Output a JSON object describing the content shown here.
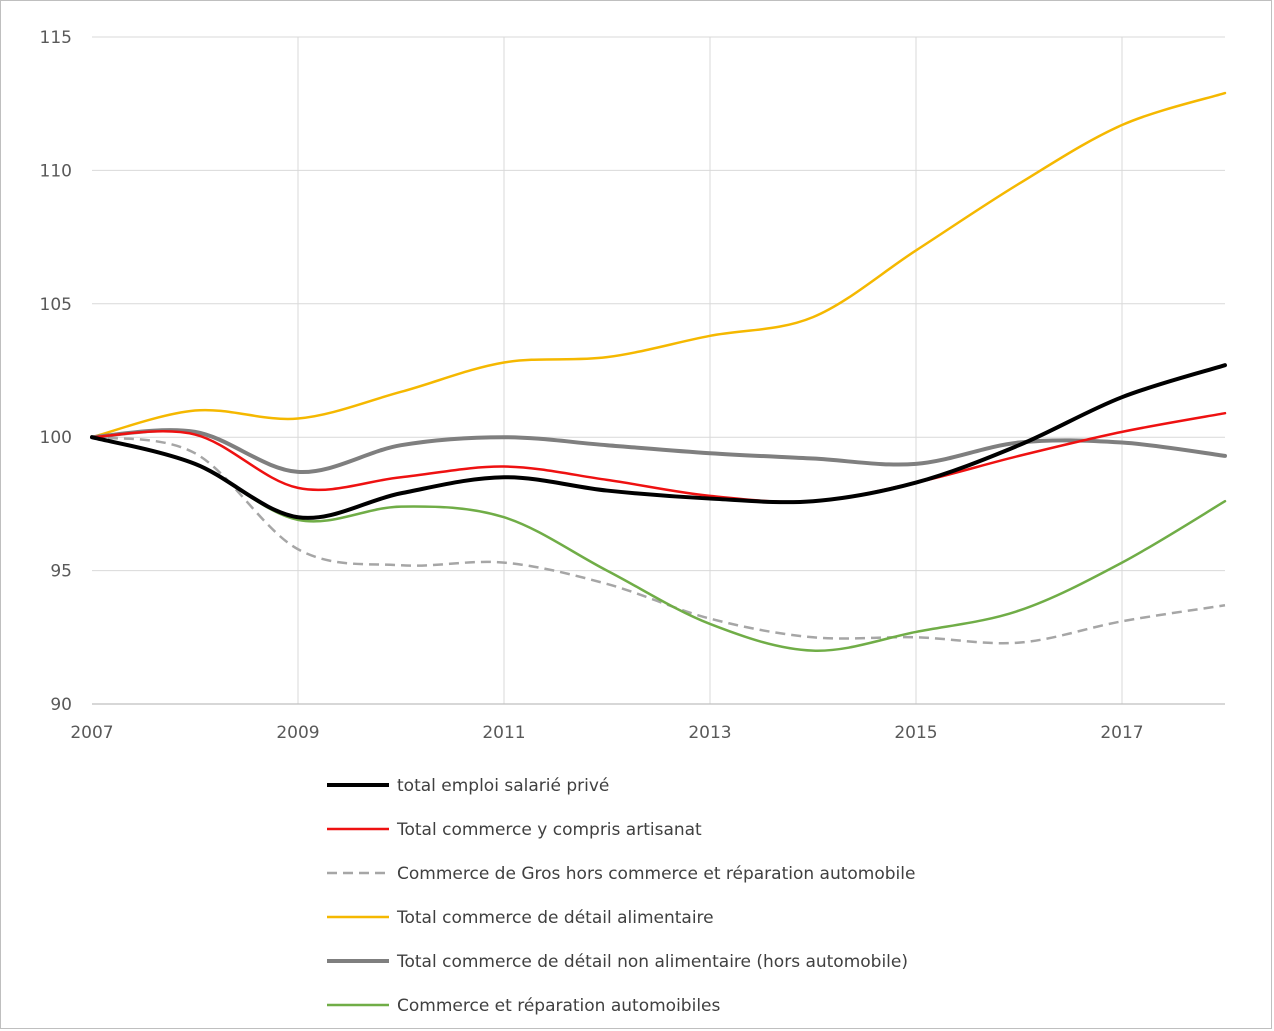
{
  "chart_data": {
    "type": "line",
    "title": "",
    "xlabel": "",
    "ylabel": "",
    "xlim": [
      2007,
      2018
    ],
    "ylim": [
      90,
      115
    ],
    "x_ticks": [
      2007,
      2009,
      2011,
      2013,
      2015,
      2017
    ],
    "x_tick_labels": [
      "2007",
      "2009",
      "2011",
      "2013",
      "2015",
      "2017"
    ],
    "y_ticks": [
      90,
      95,
      100,
      105,
      110,
      115
    ],
    "y_tick_labels": [
      "90",
      "95",
      "100",
      "105",
      "110",
      "115"
    ],
    "grid": true,
    "legend_position": "bottom",
    "x": [
      2007,
      2008,
      2009,
      2010,
      2011,
      2012,
      2013,
      2014,
      2015,
      2016,
      2017,
      2018
    ],
    "series": [
      {
        "name": "total emploi salarié privé",
        "color": "#000000",
        "dash": "solid",
        "width": 4,
        "values": [
          100,
          99.0,
          97.0,
          97.9,
          98.5,
          98.0,
          97.7,
          97.6,
          98.3,
          99.7,
          101.5,
          102.7
        ]
      },
      {
        "name": "Total commerce y compris artisanat",
        "color": "#ee1111",
        "dash": "solid",
        "width": 2.5,
        "values": [
          100,
          100.1,
          98.1,
          98.5,
          98.9,
          98.4,
          97.8,
          97.6,
          98.3,
          99.3,
          100.2,
          100.9
        ]
      },
      {
        "name": "Commerce de Gros  hors commerce et réparation automobile",
        "color": "#a6a6a6",
        "dash": "dashed",
        "width": 2.5,
        "values": [
          100,
          99.4,
          95.8,
          95.2,
          95.3,
          94.5,
          93.2,
          92.5,
          92.5,
          92.3,
          93.1,
          93.7
        ]
      },
      {
        "name": "Total commerce de détail alimentaire",
        "color": "#f5b800",
        "dash": "solid",
        "width": 2.5,
        "values": [
          100,
          101.0,
          100.7,
          101.7,
          102.8,
          103.0,
          103.8,
          104.5,
          107.0,
          109.5,
          111.7,
          112.9
        ]
      },
      {
        "name": "Total commerce de détail non alimentaire (hors automobile)",
        "color": "#7f7f7f",
        "dash": "solid",
        "width": 4,
        "values": [
          100,
          100.2,
          98.7,
          99.7,
          100.0,
          99.7,
          99.4,
          99.2,
          99.0,
          99.8,
          99.8,
          99.3
        ]
      },
      {
        "name": "Commerce et réparation automoibiles",
        "color": "#70ad47",
        "dash": "solid",
        "width": 2.5,
        "values": [
          100,
          99.0,
          96.9,
          97.4,
          97.0,
          95.0,
          93.0,
          92.0,
          92.7,
          93.5,
          95.3,
          97.6
        ]
      }
    ]
  }
}
